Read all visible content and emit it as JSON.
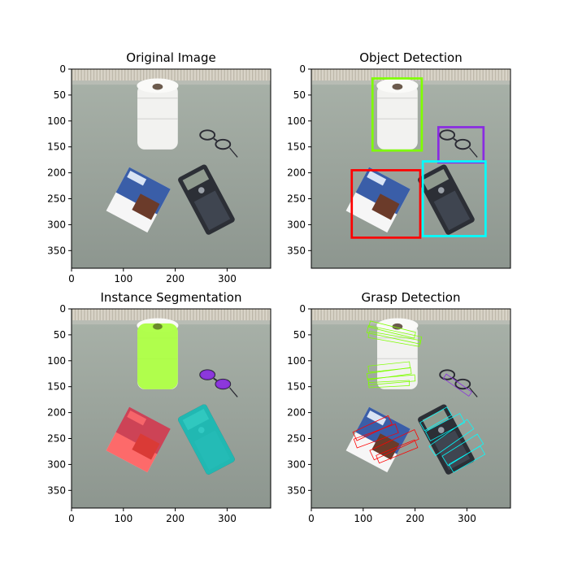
{
  "chart_data": [
    {
      "type": "image",
      "title": "Original Image",
      "xlim": [
        0,
        384
      ],
      "ylim": [
        384,
        0
      ],
      "xticks": [
        0,
        100,
        200,
        300
      ],
      "yticks": [
        0,
        50,
        100,
        150,
        200,
        250,
        300,
        350
      ]
    },
    {
      "type": "image",
      "title": "Object Detection",
      "xlim": [
        0,
        384
      ],
      "ylim": [
        384,
        0
      ],
      "xticks": [],
      "yticks": [
        0,
        50,
        100,
        150,
        200,
        250,
        300,
        350
      ],
      "boxes": [
        {
          "label": "toilet-paper",
          "color": "#7fff00",
          "x1": 118,
          "y1": 18,
          "x2": 213,
          "y2": 157
        },
        {
          "label": "glasses",
          "color": "#8a2be2",
          "x1": 245,
          "y1": 112,
          "x2": 332,
          "y2": 180
        },
        {
          "label": "chocolate-box",
          "color": "#ff0000",
          "x1": 78,
          "y1": 195,
          "x2": 210,
          "y2": 325
        },
        {
          "label": "calculator",
          "color": "#00ffff",
          "x1": 215,
          "y1": 178,
          "x2": 336,
          "y2": 322
        }
      ]
    },
    {
      "type": "image",
      "title": "Instance Segmentation",
      "xlim": [
        0,
        384
      ],
      "ylim": [
        384,
        0
      ],
      "xticks": [
        0,
        100,
        200,
        300
      ],
      "yticks": [
        0,
        50,
        100,
        150,
        200,
        250,
        300,
        350
      ],
      "masks": [
        {
          "label": "toilet-paper",
          "color": "#a8ff3a"
        },
        {
          "label": "glasses",
          "color": "#8a2be2"
        },
        {
          "label": "chocolate-box",
          "color": "#ff3b3b"
        },
        {
          "label": "calculator",
          "color": "#20d0c8"
        }
      ]
    },
    {
      "type": "image",
      "title": "Grasp Detection",
      "xlim": [
        0,
        384
      ],
      "ylim": [
        384,
        0
      ],
      "xticks": [
        0,
        100,
        200,
        300
      ],
      "yticks": [
        0,
        50,
        100,
        150,
        200,
        250,
        300,
        350
      ],
      "grasps": [
        {
          "color": "#7fff00",
          "cx": 160,
          "cy": 50,
          "w": 105,
          "h": 14,
          "angle": 12
        },
        {
          "color": "#7fff00",
          "cx": 160,
          "cy": 58,
          "w": 100,
          "h": 12,
          "angle": 10
        },
        {
          "color": "#7fff00",
          "cx": 156,
          "cy": 40,
          "w": 90,
          "h": 12,
          "angle": 14
        },
        {
          "color": "#7fff00",
          "cx": 150,
          "cy": 112,
          "w": 80,
          "h": 12,
          "angle": -6
        },
        {
          "color": "#7fff00",
          "cx": 150,
          "cy": 125,
          "w": 85,
          "h": 12,
          "angle": -8
        },
        {
          "color": "#7fff00",
          "cx": 155,
          "cy": 137,
          "w": 90,
          "h": 12,
          "angle": -5
        },
        {
          "color": "#7fff00",
          "cx": 150,
          "cy": 145,
          "w": 78,
          "h": 10,
          "angle": -3
        },
        {
          "color": "#8a2be2",
          "cx": 282,
          "cy": 147,
          "w": 60,
          "h": 10,
          "angle": 35
        },
        {
          "color": "#ff0000",
          "cx": 118,
          "cy": 230,
          "w": 75,
          "h": 18,
          "angle": -25
        },
        {
          "color": "#ff0000",
          "cx": 125,
          "cy": 245,
          "w": 85,
          "h": 18,
          "angle": -20
        },
        {
          "color": "#ff0000",
          "cx": 160,
          "cy": 262,
          "w": 95,
          "h": 20,
          "angle": -25
        },
        {
          "color": "#ff0000",
          "cx": 165,
          "cy": 275,
          "w": 80,
          "h": 16,
          "angle": -22
        },
        {
          "color": "#00ffff",
          "cx": 240,
          "cy": 212,
          "w": 60,
          "h": 18,
          "angle": -30
        },
        {
          "color": "#00ffff",
          "cx": 258,
          "cy": 228,
          "w": 75,
          "h": 20,
          "angle": -28
        },
        {
          "color": "#00ffff",
          "cx": 270,
          "cy": 248,
          "w": 90,
          "h": 22,
          "angle": -35
        },
        {
          "color": "#00ffff",
          "cx": 292,
          "cy": 272,
          "w": 80,
          "h": 22,
          "angle": -32
        },
        {
          "color": "#00ffff",
          "cx": 300,
          "cy": 290,
          "w": 70,
          "h": 18,
          "angle": -30
        }
      ]
    }
  ]
}
